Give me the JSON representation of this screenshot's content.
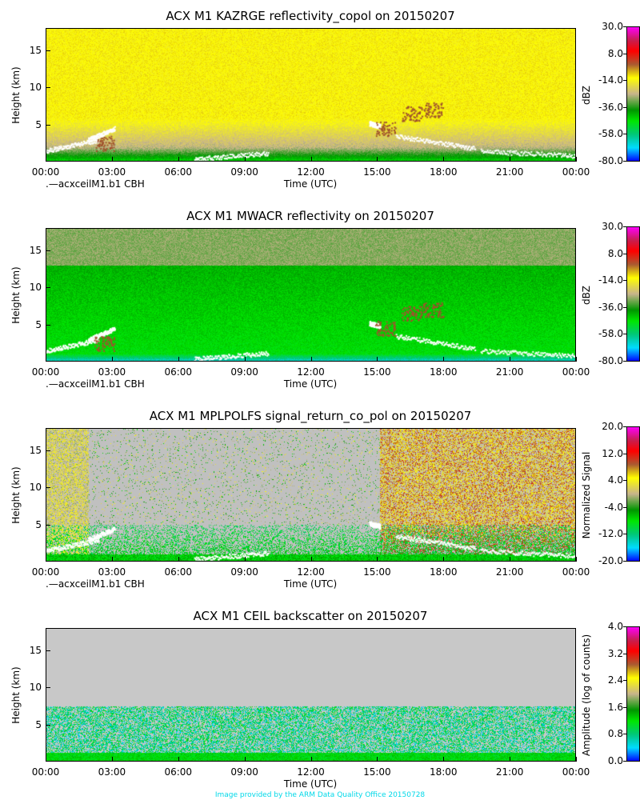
{
  "chart_data": [
    {
      "type": "heatmap",
      "title": "ACX M1 KAZRGE reflectivity_copol on 20150207",
      "xlabel": "Time (UTC)",
      "ylabel": "Height (km)",
      "xticks": [
        "00:00",
        "03:00",
        "06:00",
        "09:00",
        "12:00",
        "15:00",
        "18:00",
        "21:00",
        "00:00"
      ],
      "yticks": [
        "5",
        "10",
        "15"
      ],
      "ylim": [
        0,
        18
      ],
      "legend": ".—acxceilM1.b1 CBH",
      "colorbar": {
        "label": "dBZ",
        "ticks": [
          "30.0",
          "8.0",
          "-14.0",
          "-36.0",
          "-58.0",
          "-80.0"
        ],
        "range": [
          -80,
          30
        ]
      },
      "background": "yellow"
    },
    {
      "type": "heatmap",
      "title": "ACX M1 MWACR reflectivity on 20150207",
      "xlabel": "Time (UTC)",
      "ylabel": "Height (km)",
      "xticks": [
        "00:00",
        "03:00",
        "06:00",
        "09:00",
        "12:00",
        "15:00",
        "18:00",
        "21:00",
        "00:00"
      ],
      "yticks": [
        "5",
        "10",
        "15"
      ],
      "ylim": [
        0,
        18
      ],
      "legend": ".—acxceilM1.b1 CBH",
      "colorbar": {
        "label": "dBZ",
        "ticks": [
          "30.0",
          "8.0",
          "-14.0",
          "-36.0",
          "-58.0",
          "-80.0"
        ],
        "range": [
          -80,
          30
        ]
      },
      "background": "green"
    },
    {
      "type": "heatmap",
      "title": "ACX M1 MPLPOLFS signal_return_co_pol on 20150207",
      "xlabel": "Time (UTC)",
      "ylabel": "Height (km)",
      "xticks": [
        "00:00",
        "03:00",
        "06:00",
        "09:00",
        "12:00",
        "15:00",
        "18:00",
        "21:00",
        "00:00"
      ],
      "yticks": [
        "5",
        "10",
        "15"
      ],
      "ylim": [
        0,
        18
      ],
      "legend": ".—acxceilM1.b1 CBH",
      "colorbar": {
        "label": "Normalized Signal",
        "ticks": [
          "20.0",
          "12.0",
          "4.0",
          "-4.0",
          "-12.0",
          "-20.0"
        ],
        "range": [
          -20,
          20
        ]
      },
      "background": "gray"
    },
    {
      "type": "heatmap",
      "title": "ACX M1 CEIL backscatter on 20150207",
      "xlabel": "Time (UTC)",
      "ylabel": "Height (km)",
      "xticks": [
        "00:00",
        "03:00",
        "06:00",
        "09:00",
        "12:00",
        "15:00",
        "18:00",
        "21:00",
        "00:00"
      ],
      "yticks": [
        "5",
        "10",
        "15"
      ],
      "ylim": [
        0,
        18
      ],
      "legend": "",
      "colorbar": {
        "label": "Amplitude (log of counts)",
        "ticks": [
          "4.0",
          "3.2",
          "2.4",
          "1.6",
          "0.8",
          "0.0"
        ],
        "range": [
          0,
          4
        ]
      },
      "background": "gray"
    }
  ],
  "footer": "Image provided by the ARM Data Quality Office 20150728"
}
